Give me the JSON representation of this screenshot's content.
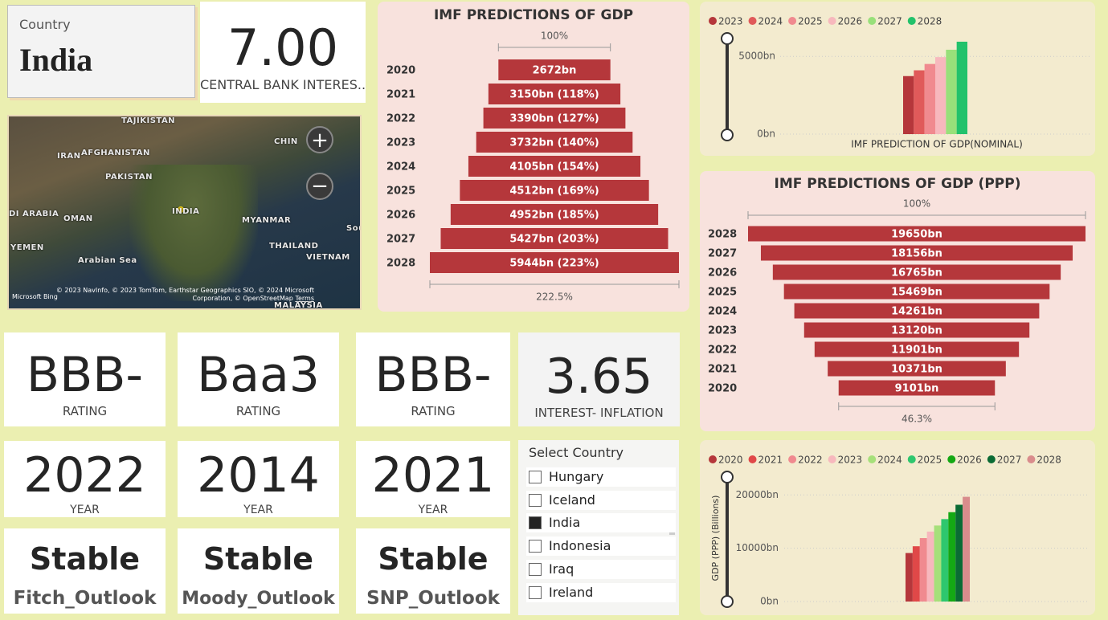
{
  "country_card": {
    "label": "Country",
    "value": "India"
  },
  "cards": [
    {
      "value": "7.00",
      "label": "CENTRAL BANK INTERES..."
    },
    {
      "value": "BBB-",
      "label": "RATING"
    },
    {
      "value": "Baa3",
      "label": "RATING"
    },
    {
      "value": "BBB-",
      "label": "RATING"
    },
    {
      "value": "3.65",
      "label": "INTEREST- INFLATION"
    },
    {
      "value": "2022",
      "label": "YEAR"
    },
    {
      "value": "2014",
      "label": "YEAR"
    },
    {
      "value": "2021",
      "label": "YEAR"
    },
    {
      "value": "Stable",
      "label": "Fitch_Outlook"
    },
    {
      "value": "Stable",
      "label": "Moody_Outlook"
    },
    {
      "value": "Stable",
      "label": "SNP_Outlook"
    }
  ],
  "map": {
    "labels": [
      "TAJIKISTAN",
      "IRAN",
      "AFGHANISTAN",
      "PAKISTAN",
      "CHIN",
      "DI ARABIA",
      "OMAN",
      "INDIA",
      "MYANMAR",
      "YEMEN",
      "THAILAND",
      "Arabian Sea",
      "VIETNAM",
      "MALAYSIA",
      "Sou"
    ],
    "attribution": "© 2023 NavInfo, © 2023 TomTom, Earthstar Geographics SIO, © 2024 Microsoft Corporation, © OpenStreetMap",
    "terms": "Terms",
    "provider": "Microsoft Bing"
  },
  "slicer": {
    "title": "Select Country",
    "items": [
      "Hungary",
      "Iceland",
      "India",
      "Indonesia",
      "Iraq",
      "Ireland"
    ],
    "checked": [
      false,
      false,
      true,
      false,
      false,
      false
    ]
  },
  "chart_data": [
    {
      "type": "funnel",
      "title": "IMF PREDICTIONS OF GDP",
      "categories": [
        "2020",
        "2021",
        "2022",
        "2023",
        "2024",
        "2025",
        "2026",
        "2027",
        "2028"
      ],
      "values": [
        2672,
        3150,
        3390,
        3732,
        4105,
        4512,
        4952,
        5427,
        5944
      ],
      "value_labels": [
        "2672bn",
        "3150bn (118%)",
        "3390bn (127%)",
        "3732bn (140%)",
        "4105bn (154%)",
        "4512bn (169%)",
        "4952bn (185%)",
        "5427bn (203%)",
        "5944bn (223%)"
      ],
      "top_label": "100%",
      "bottom_label": "222.5%",
      "color": "#b5373b"
    },
    {
      "type": "column",
      "x_label": "IMF PREDICTION OF GDP(NOMINAL)",
      "categories": [
        null
      ],
      "series": [
        {
          "name": "2023",
          "color": "#b5373b",
          "values": [
            3732
          ]
        },
        {
          "name": "2024",
          "color": "#e05a5a",
          "values": [
            4105
          ]
        },
        {
          "name": "2025",
          "color": "#f08a8f",
          "values": [
            4512
          ]
        },
        {
          "name": "2026",
          "color": "#f7b8bd",
          "values": [
            4952
          ]
        },
        {
          "name": "2027",
          "color": "#98e07a",
          "values": [
            5427
          ]
        },
        {
          "name": "2028",
          "color": "#22c26b",
          "values": [
            5944
          ]
        }
      ],
      "ylim": [
        0,
        6250
      ],
      "yticks": [
        {
          "value": 0,
          "label": "0bn"
        },
        {
          "value": 5000,
          "label": "5000bn"
        }
      ],
      "grid": true
    },
    {
      "type": "funnel",
      "title": "IMF PREDICTIONS OF GDP (PPP)",
      "categories": [
        "2028",
        "2027",
        "2026",
        "2025",
        "2024",
        "2023",
        "2022",
        "2021",
        "2020"
      ],
      "values": [
        19650,
        18156,
        16765,
        15469,
        14261,
        13120,
        11901,
        10371,
        9101
      ],
      "value_labels": [
        "19650bn",
        "18156bn",
        "16765bn",
        "15469bn",
        "14261bn",
        "13120bn",
        "11901bn",
        "10371bn",
        "9101bn"
      ],
      "top_label": "100%",
      "bottom_label": "46.3%",
      "color": "#b5373b"
    },
    {
      "type": "column",
      "y_label": "GDP (PPP) (Billions)",
      "categories": [
        null
      ],
      "series": [
        {
          "name": "2020",
          "color": "#b5373b",
          "values": [
            9101
          ]
        },
        {
          "name": "2021",
          "color": "#e04848",
          "values": [
            10371
          ]
        },
        {
          "name": "2022",
          "color": "#f08a8f",
          "values": [
            11901
          ]
        },
        {
          "name": "2023",
          "color": "#f7b8bd",
          "values": [
            13120
          ]
        },
        {
          "name": "2024",
          "color": "#a6e07a",
          "values": [
            14261
          ]
        },
        {
          "name": "2025",
          "color": "#2ec76e",
          "values": [
            15469
          ]
        },
        {
          "name": "2026",
          "color": "#14a814",
          "values": [
            16765
          ]
        },
        {
          "name": "2027",
          "color": "#0a6b34",
          "values": [
            18156
          ]
        },
        {
          "name": "2028",
          "color": "#d98c8c",
          "values": [
            19650
          ]
        }
      ],
      "ylim": [
        0,
        22000
      ],
      "yticks": [
        {
          "value": 0,
          "label": "0bn"
        },
        {
          "value": 10000,
          "label": "10000bn"
        },
        {
          "value": 20000,
          "label": "20000bn"
        }
      ],
      "grid": true
    }
  ]
}
